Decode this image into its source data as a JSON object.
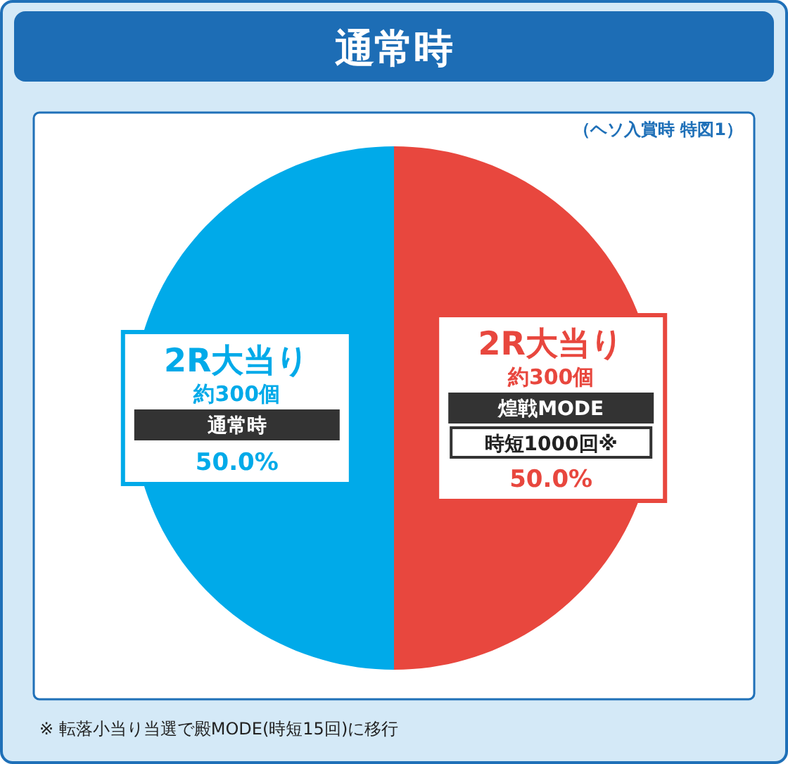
{
  "chart_data": {
    "type": "pie",
    "title": "通常時",
    "subtitle": "（ヘソ入賞時 特図1）",
    "categories": [
      "煌戦MODE",
      "通常時"
    ],
    "values": [
      50,
      50
    ],
    "value_labels": [
      "50.0%",
      "50.0%"
    ],
    "colors": [
      "#e8473e",
      "#00aae9"
    ],
    "legend": false,
    "annotations": [
      {
        "text": "2R大当り",
        "x": "煌戦MODE"
      },
      {
        "text": "約300個",
        "x": "煌戦MODE"
      },
      {
        "text": "時短1000回※",
        "x": "煌戦MODE"
      },
      {
        "text": "2R大当り",
        "x": "通常時"
      },
      {
        "text": "約300個",
        "x": "通常時"
      },
      "※ 転落小当り当選で殿MODE(時短15回)に移行"
    ]
  }
}
